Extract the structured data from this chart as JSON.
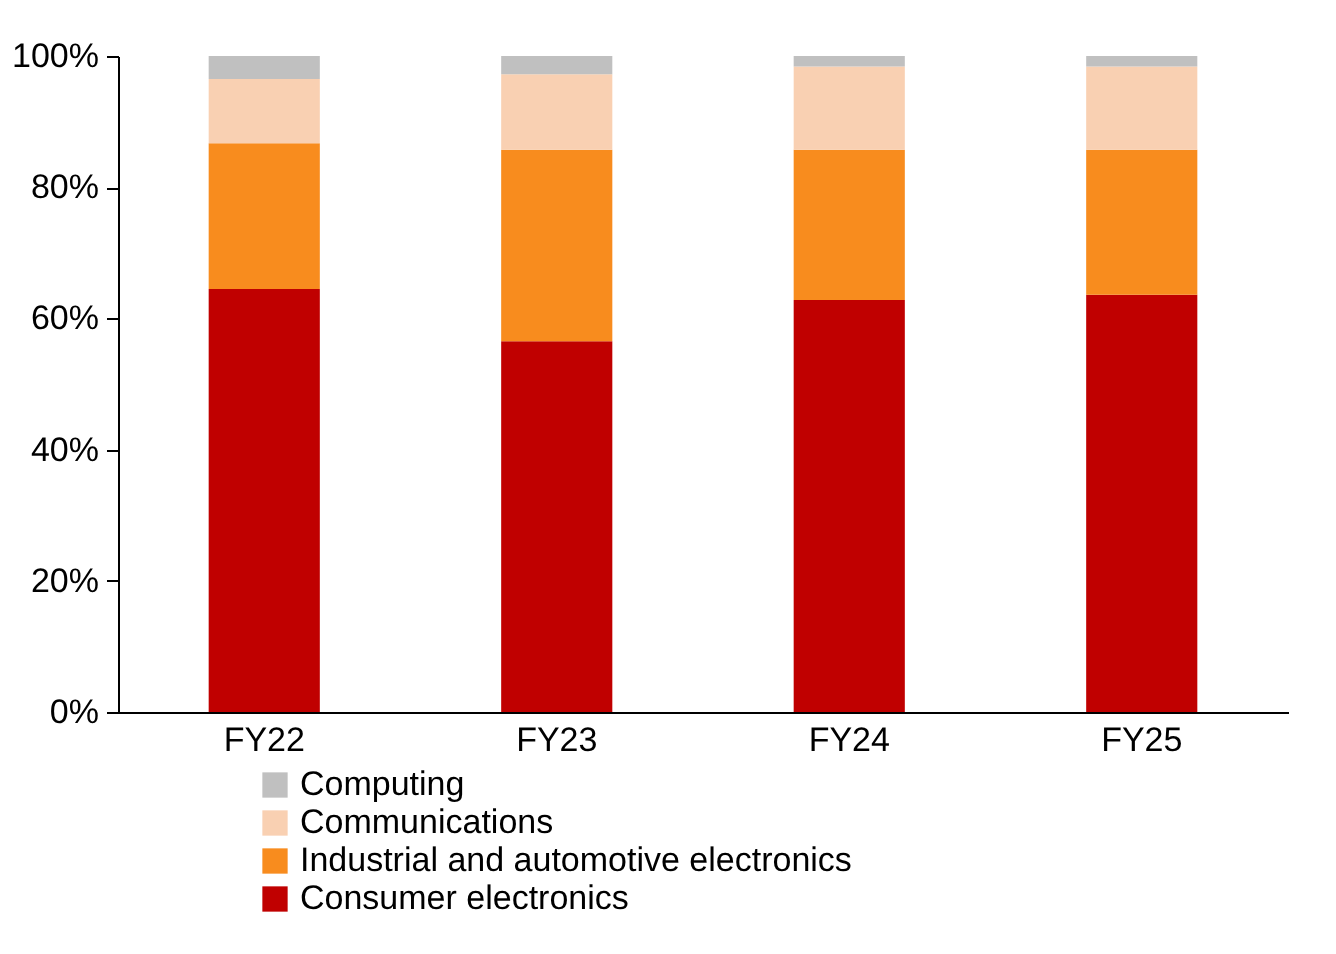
{
  "chart_data": {
    "type": "bar",
    "stacked": true,
    "categories": [
      "FY22",
      "FY23",
      "FY24",
      "FY25"
    ],
    "series": [
      {
        "name": "Consumer electronics",
        "color": "#c00000",
        "values": [
          64.5,
          56.5,
          62.8,
          63.6
        ]
      },
      {
        "name": "Industrial and automotive electronics",
        "color": "#f88c1e",
        "values": [
          22.2,
          29.2,
          22.9,
          22.1
        ]
      },
      {
        "name": "Communications",
        "color": "#f9d0b2",
        "values": [
          9.8,
          11.5,
          12.7,
          12.7
        ]
      },
      {
        "name": "Computing",
        "color": "#c0c0c0",
        "values": [
          3.5,
          2.8,
          1.6,
          1.6
        ]
      }
    ],
    "ylim": [
      0,
      100
    ],
    "yticks": [
      {
        "value": 0,
        "label": "0%"
      },
      {
        "value": 20,
        "label": "20%"
      },
      {
        "value": 40,
        "label": "40%"
      },
      {
        "value": 60,
        "label": "60%"
      },
      {
        "value": 80,
        "label": "80%"
      },
      {
        "value": 100,
        "label": "100%"
      }
    ],
    "grid": false,
    "legend": "bottom"
  }
}
